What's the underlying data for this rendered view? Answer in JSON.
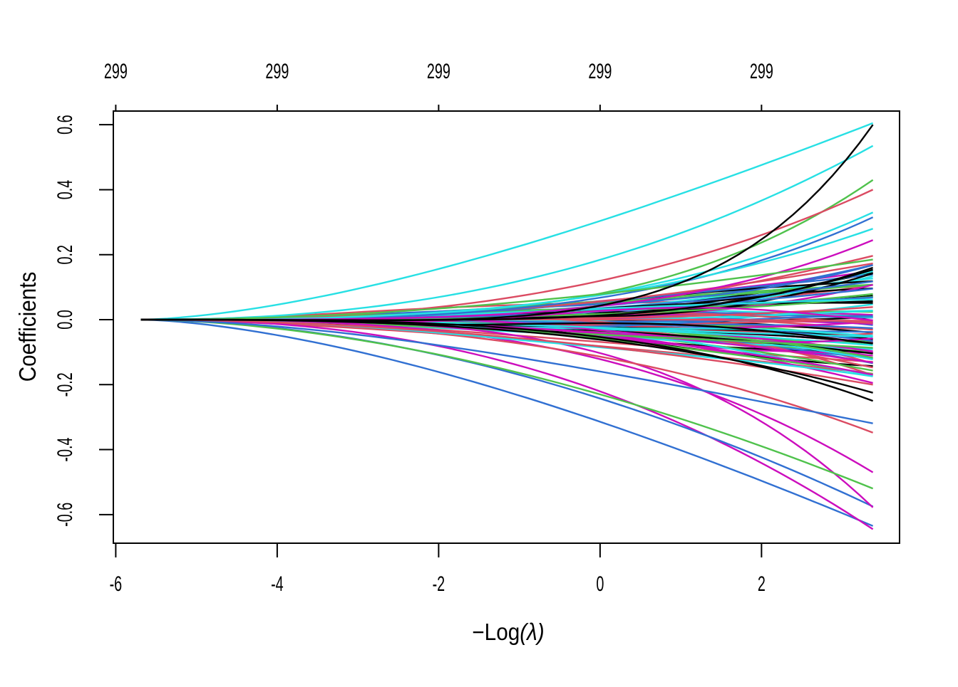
{
  "figure": {
    "background": "#ffffff",
    "kind": "coefficient-profile-plot"
  },
  "chart_data": {
    "type": "line",
    "title": "",
    "xlabel": "−Log(λ)",
    "xlabel_parts": {
      "prefix": "−Log",
      "italic": "(λ)"
    },
    "ylabel": "Coefficients",
    "xlim": [
      -6.03,
      3.71
    ],
    "ylim": [
      -0.688,
      0.642
    ],
    "grid": false,
    "legend": false,
    "x_ticks": [
      {
        "value": -6,
        "label": "-6"
      },
      {
        "value": -4,
        "label": "-4"
      },
      {
        "value": -2,
        "label": "-2"
      },
      {
        "value": 0,
        "label": "0"
      },
      {
        "value": 2,
        "label": "2"
      }
    ],
    "y_ticks": [
      {
        "value": 0.6,
        "label": "0.6"
      },
      {
        "value": 0.4,
        "label": "0.4"
      },
      {
        "value": 0.2,
        "label": "0.2"
      },
      {
        "value": 0.0,
        "label": "0.0"
      },
      {
        "value": -0.2,
        "label": "-0.2"
      },
      {
        "value": -0.4,
        "label": "-0.4"
      },
      {
        "value": -0.6,
        "label": "-0.6"
      }
    ],
    "top_axis_labels": [
      {
        "value": -6,
        "label": "299"
      },
      {
        "value": -4,
        "label": "299"
      },
      {
        "value": -2,
        "label": "299"
      },
      {
        "value": 0,
        "label": "299"
      },
      {
        "value": 2,
        "label": "299"
      }
    ],
    "curves": {
      "start": {
        "x": -5.69,
        "y": 0.0
      },
      "x_end": 3.38,
      "stroke_width": 2.4,
      "palette": [
        "#000000",
        "#DB4B62",
        "#4FC24C",
        "#3170D2",
        "#27E0E4",
        "#CC0DBD"
      ],
      "notable": [
        {
          "color": 4,
          "end": 0.605,
          "power": 1.55,
          "wiggle": 0.02,
          "freq": 1.0
        },
        {
          "color": 4,
          "end": 0.535,
          "power": 2.2,
          "wiggle": -0.015,
          "freq": 1.0
        },
        {
          "color": 2,
          "end": 0.43,
          "power": 3.6,
          "wiggle": 0,
          "freq": 1
        },
        {
          "color": 1,
          "end": 0.4,
          "power": 2.7,
          "wiggle": 0.012,
          "freq": 1
        },
        {
          "color": 4,
          "end": 0.33,
          "power": 3.1,
          "wiggle": 0,
          "freq": 1
        },
        {
          "color": 3,
          "end": 0.315,
          "power": 3.3,
          "wiggle": 0,
          "freq": 1
        },
        {
          "color": 4,
          "end": 0.28,
          "power": 2.9,
          "wiggle": 0.006,
          "freq": 1
        },
        {
          "color": 5,
          "end": 0.245,
          "power": 3.8,
          "wiggle": 0,
          "freq": 1
        },
        {
          "color": 2,
          "end": 0.185,
          "power": 2.0,
          "wiggle": 0.012,
          "freq": 1
        },
        {
          "color": 3,
          "end": -0.635,
          "power": 1.55,
          "wiggle": -0.012,
          "freq": 1
        },
        {
          "color": 5,
          "end": -0.645,
          "power": 2.3,
          "wiggle": 0,
          "freq": 1
        },
        {
          "color": 3,
          "end": -0.575,
          "power": 1.85,
          "wiggle": 0,
          "freq": 1
        },
        {
          "color": 5,
          "end": -0.578,
          "power": 3.7,
          "wiggle": 0,
          "freq": 1
        },
        {
          "color": 2,
          "end": -0.52,
          "power": 1.75,
          "wiggle": 0,
          "freq": 1
        },
        {
          "color": 5,
          "end": -0.47,
          "power": 2.9,
          "wiggle": 0,
          "freq": 1
        },
        {
          "color": 1,
          "end": -0.36,
          "power": 2.1,
          "wiggle": 0.04,
          "freq": 0.9
        },
        {
          "color": 3,
          "end": -0.31,
          "power": 1.65,
          "wiggle": -0.03,
          "freq": 0.9
        },
        {
          "color": 4,
          "end": -0.215,
          "power": 2.4,
          "wiggle": -0.05,
          "freq": 1.3
        },
        {
          "color": 1,
          "end": -0.2,
          "power": 1.9,
          "wiggle": 0,
          "freq": 1
        },
        {
          "color": 0,
          "end": 0.6,
          "power": 5.2,
          "wiggle": -0.02,
          "freq": 1
        },
        {
          "color": 0,
          "end": 0.16,
          "power": 4.6,
          "wiggle": -0.012,
          "freq": 1
        },
        {
          "color": 0,
          "end": -0.25,
          "power": 3.3,
          "wiggle": 0,
          "freq": 1
        },
        {
          "color": 0,
          "end": -0.225,
          "power": 3.0,
          "wiggle": -0.012,
          "freq": 1
        }
      ],
      "background": {
        "count": 96,
        "seed": 1337,
        "end_abs_max": 0.19,
        "power_min": 1.45,
        "power_span": 2.6,
        "wiggle_max": 0.055,
        "freq_min": 0.8,
        "freq_span": 1.5
      }
    }
  }
}
